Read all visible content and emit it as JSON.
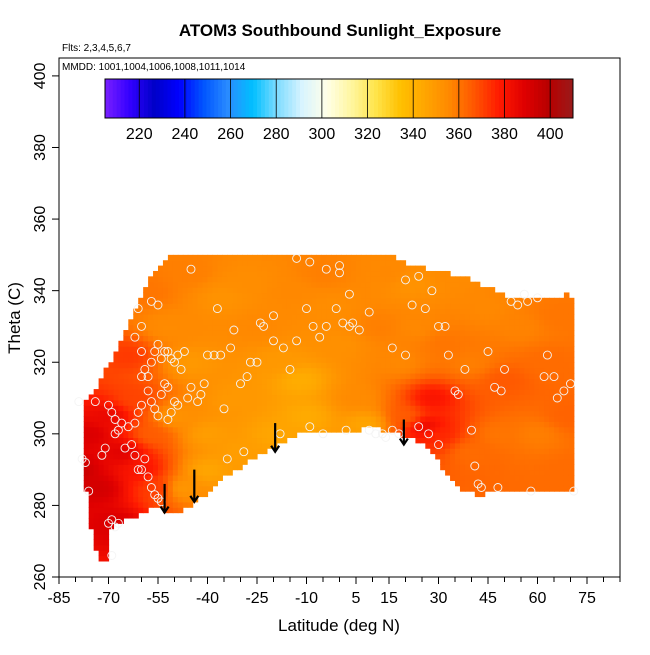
{
  "chart_data": {
    "type": "heatmap",
    "title": "ATOM3 Southbound Sunlight_Exposure",
    "flights_note": "Flts: 2,3,4,5,6,7",
    "mmdd_note": "MMDD: 1001,1004,1006,1008,1011,1014",
    "xlabel": "Latitude (deg N)",
    "ylabel": "Theta (C)",
    "xlim": [
      -85,
      85
    ],
    "ylim": [
      260,
      405
    ],
    "x_ticks": [
      -85,
      -70,
      -55,
      -40,
      -25,
      -10,
      5,
      15,
      30,
      45,
      60,
      75
    ],
    "x_tick_labels": [
      "-85",
      "-70",
      "-55",
      "-40",
      "-25",
      "-10",
      "5",
      "15",
      "30",
      "45",
      "60",
      "75"
    ],
    "y_ticks": [
      260,
      280,
      300,
      320,
      340,
      360,
      380,
      400
    ],
    "y_tick_labels": [
      "260",
      "280",
      "300",
      "320",
      "340",
      "360",
      "380",
      "400"
    ],
    "colorbar": {
      "min": 205,
      "max": 410,
      "ticks": [
        220,
        240,
        260,
        280,
        300,
        320,
        340,
        360,
        380,
        400
      ],
      "tick_labels": [
        "220",
        "240",
        "260",
        "280",
        "300",
        "320",
        "340",
        "360",
        "380",
        "400"
      ],
      "colors": [
        "#7a1fff",
        "#3300ff",
        "#0000c8",
        "#0000ff",
        "#0055ff",
        "#2a8cff",
        "#00bfff",
        "#7fdcff",
        "#d8f4ff",
        "#ffffe8",
        "#fff6a0",
        "#ffe44a",
        "#ffc000",
        "#ffa500",
        "#ff8800",
        "#ff5500",
        "#ff1a00",
        "#e00000",
        "#b80000",
        "#9a1a1a"
      ]
    },
    "domain_boundary": [
      [
        -77.5,
        291
      ],
      [
        -76.5,
        282
      ],
      [
        -75,
        272
      ],
      [
        -73,
        266
      ],
      [
        -71.5,
        263.5
      ],
      [
        -70.5,
        265
      ],
      [
        -70,
        272
      ],
      [
        -67,
        275
      ],
      [
        -62,
        277
      ],
      [
        -57,
        279
      ],
      [
        -54,
        279
      ],
      [
        -49,
        277.5
      ],
      [
        -45,
        280
      ],
      [
        -41,
        283
      ],
      [
        -35,
        288
      ],
      [
        -28,
        292
      ],
      [
        -22,
        295
      ],
      [
        -16,
        298
      ],
      [
        -12,
        300.5
      ],
      [
        -5,
        300.5
      ],
      [
        3,
        301
      ],
      [
        9,
        301.5
      ],
      [
        15,
        301
      ],
      [
        20,
        299
      ],
      [
        24,
        298
      ],
      [
        27,
        296
      ],
      [
        30,
        292
      ],
      [
        34,
        287
      ],
      [
        38,
        284
      ],
      [
        43,
        283
      ],
      [
        50,
        284
      ],
      [
        58,
        284
      ],
      [
        66,
        284
      ],
      [
        71.5,
        284
      ],
      [
        71.5,
        338
      ],
      [
        69,
        339
      ],
      [
        65,
        338
      ],
      [
        60,
        338
      ],
      [
        52,
        338
      ],
      [
        40,
        343
      ],
      [
        28,
        346
      ],
      [
        22,
        347
      ],
      [
        16,
        349.5
      ],
      [
        -52,
        349.5
      ],
      [
        -55,
        347
      ],
      [
        -58,
        343
      ],
      [
        -61,
        337
      ],
      [
        -64,
        330
      ],
      [
        -67,
        324
      ],
      [
        -70,
        319
      ],
      [
        -73,
        314
      ],
      [
        -76,
        310
      ],
      [
        -77.5,
        309
      ],
      [
        -78,
        300
      ]
    ],
    "field_points": [
      [
        -80,
        290,
        395
      ],
      [
        -76,
        300,
        390
      ],
      [
        -73,
        285,
        392
      ],
      [
        -70,
        305,
        385
      ],
      [
        -68,
        275,
        390
      ],
      [
        -66,
        295,
        388
      ],
      [
        -64,
        322,
        372
      ],
      [
        -62,
        310,
        370
      ],
      [
        -60,
        290,
        380
      ],
      [
        -58,
        340,
        360
      ],
      [
        -57,
        300,
        365
      ],
      [
        -55,
        285,
        372
      ],
      [
        -52,
        330,
        355
      ],
      [
        -50,
        305,
        352
      ],
      [
        -48,
        285,
        350
      ],
      [
        -45,
        345,
        358
      ],
      [
        -45,
        320,
        350
      ],
      [
        -40,
        300,
        348
      ],
      [
        -40,
        290,
        345
      ],
      [
        -35,
        338,
        352
      ],
      [
        -32,
        310,
        350
      ],
      [
        -30,
        295,
        348
      ],
      [
        -25,
        330,
        356
      ],
      [
        -20,
        300,
        345
      ],
      [
        -15,
        340,
        356
      ],
      [
        -12,
        315,
        342
      ],
      [
        -10,
        305,
        343
      ],
      [
        -5,
        345,
        358
      ],
      [
        0,
        325,
        353
      ],
      [
        5,
        310,
        355
      ],
      [
        8,
        303,
        345
      ],
      [
        12,
        330,
        358
      ],
      [
        15,
        345,
        356
      ],
      [
        18,
        320,
        356
      ],
      [
        20,
        305,
        365
      ],
      [
        23,
        330,
        356
      ],
      [
        26,
        302,
        385
      ],
      [
        28,
        310,
        380
      ],
      [
        30,
        300,
        375
      ],
      [
        32,
        325,
        360
      ],
      [
        35,
        345,
        355
      ],
      [
        40,
        320,
        358
      ],
      [
        40,
        295,
        362
      ],
      [
        45,
        335,
        356
      ],
      [
        48,
        300,
        360
      ],
      [
        50,
        315,
        366
      ],
      [
        55,
        330,
        357
      ],
      [
        60,
        300,
        358
      ],
      [
        63,
        320,
        362
      ],
      [
        66,
        333,
        360
      ],
      [
        69,
        305,
        364
      ],
      [
        70,
        290,
        362
      ],
      [
        22,
        342,
        352
      ],
      [
        -3,
        335,
        354
      ],
      [
        -28,
        342,
        354
      ],
      [
        -18,
        320,
        350
      ]
    ],
    "observations": [
      [
        -79,
        309
      ],
      [
        -78,
        293
      ],
      [
        -77,
        292
      ],
      [
        -76,
        284
      ],
      [
        -74,
        309
      ],
      [
        -72,
        294
      ],
      [
        -71,
        296
      ],
      [
        -70,
        308
      ],
      [
        -69,
        306
      ],
      [
        -68,
        304
      ],
      [
        -70,
        275
      ],
      [
        -69,
        276
      ],
      [
        -68,
        274
      ],
      [
        -67,
        275
      ],
      [
        -69,
        266
      ],
      [
        -68,
        300
      ],
      [
        -67,
        301
      ],
      [
        -66,
        303
      ],
      [
        -65,
        296
      ],
      [
        -64,
        302
      ],
      [
        -63,
        297
      ],
      [
        -62,
        294
      ],
      [
        -61,
        290
      ],
      [
        -60,
        290
      ],
      [
        -59,
        293
      ],
      [
        -58,
        288
      ],
      [
        -57,
        285
      ],
      [
        -56,
        283
      ],
      [
        -55,
        282
      ],
      [
        -54,
        281
      ],
      [
        -62,
        303
      ],
      [
        -61,
        306
      ],
      [
        -60,
        308
      ],
      [
        -60,
        316
      ],
      [
        -59,
        318
      ],
      [
        -58,
        312
      ],
      [
        -57,
        309
      ],
      [
        -56,
        307
      ],
      [
        -55,
        305
      ],
      [
        -54,
        311
      ],
      [
        -53,
        314
      ],
      [
        -52,
        313
      ],
      [
        -52,
        304
      ],
      [
        -51,
        306
      ],
      [
        -50,
        309
      ],
      [
        -49,
        308
      ],
      [
        -49,
        322
      ],
      [
        -50,
        320
      ],
      [
        -51,
        321
      ],
      [
        -52,
        323
      ],
      [
        -53,
        323
      ],
      [
        -54,
        321
      ],
      [
        -55,
        325
      ],
      [
        -56,
        323
      ],
      [
        -57,
        320
      ],
      [
        -58,
        316
      ],
      [
        -60,
        330
      ],
      [
        -61,
        335
      ],
      [
        -62,
        327
      ],
      [
        -60,
        323
      ],
      [
        -57,
        337
      ],
      [
        -55,
        336
      ],
      [
        -48,
        318
      ],
      [
        -47,
        323
      ],
      [
        -46,
        310
      ],
      [
        -45,
        313
      ],
      [
        -43,
        309
      ],
      [
        -42,
        311
      ],
      [
        -41,
        314
      ],
      [
        -40,
        322
      ],
      [
        -38,
        322
      ],
      [
        -36,
        322
      ],
      [
        -35,
        307
      ],
      [
        -33,
        324
      ],
      [
        -32,
        329
      ],
      [
        -30,
        314
      ],
      [
        -28,
        316
      ],
      [
        -27,
        320
      ],
      [
        -25,
        320
      ],
      [
        -24,
        331
      ],
      [
        -20,
        333
      ],
      [
        -17,
        324
      ],
      [
        -15,
        318
      ],
      [
        -13,
        326
      ],
      [
        -10,
        335
      ],
      [
        -8,
        330
      ],
      [
        -6,
        327
      ],
      [
        -4,
        330
      ],
      [
        -1,
        335
      ],
      [
        1,
        331
      ],
      [
        3,
        339
      ],
      [
        4,
        331
      ],
      [
        -45,
        346
      ],
      [
        -37,
        335
      ],
      [
        -23,
        330
      ],
      [
        -20,
        326
      ],
      [
        -13,
        349
      ],
      [
        -9,
        348
      ],
      [
        -4,
        346
      ],
      [
        0,
        345
      ],
      [
        0,
        347
      ],
      [
        3,
        330
      ],
      [
        6,
        329
      ],
      [
        9,
        334
      ],
      [
        11,
        300
      ],
      [
        13,
        300
      ],
      [
        14,
        299
      ],
      [
        16,
        301
      ],
      [
        18,
        300
      ],
      [
        20,
        343
      ],
      [
        22,
        336
      ],
      [
        24,
        344
      ],
      [
        26,
        335
      ],
      [
        28,
        340
      ],
      [
        30,
        330
      ],
      [
        32,
        330
      ],
      [
        33,
        322
      ],
      [
        35,
        312
      ],
      [
        36,
        311
      ],
      [
        38,
        318
      ],
      [
        40,
        301
      ],
      [
        41,
        291
      ],
      [
        42,
        286
      ],
      [
        43,
        285
      ],
      [
        45,
        323
      ],
      [
        47,
        313
      ],
      [
        49,
        312
      ],
      [
        50,
        318
      ],
      [
        52,
        337
      ],
      [
        54,
        336
      ],
      [
        56,
        339
      ],
      [
        57,
        337
      ],
      [
        60,
        338
      ],
      [
        62,
        316
      ],
      [
        63,
        322
      ],
      [
        65,
        316
      ],
      [
        66,
        310
      ],
      [
        68,
        312
      ],
      [
        70,
        314
      ],
      [
        71,
        284
      ],
      [
        58,
        284
      ],
      [
        48,
        285
      ],
      [
        -34,
        293
      ],
      [
        -29,
        295
      ],
      [
        -18,
        300
      ],
      [
        -9,
        302
      ],
      [
        -5,
        300
      ],
      [
        2,
        301
      ],
      [
        9,
        301
      ],
      [
        16,
        324
      ],
      [
        20,
        322
      ],
      [
        24,
        302
      ],
      [
        27,
        300
      ],
      [
        30,
        297
      ]
    ],
    "arrows": [
      {
        "lat": -53,
        "from_theta": 286,
        "to_theta": 278
      },
      {
        "lat": -44,
        "from_theta": 290,
        "to_theta": 281
      },
      {
        "lat": -19.5,
        "from_theta": 303,
        "to_theta": 295
      },
      {
        "lat": 19.5,
        "from_theta": 304,
        "to_theta": 297
      }
    ]
  }
}
